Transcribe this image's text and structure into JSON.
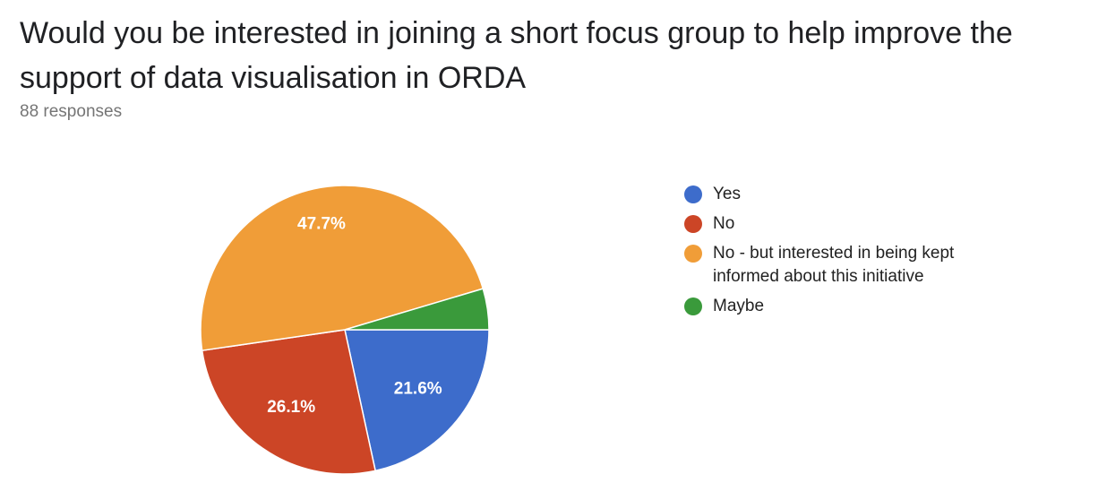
{
  "question": {
    "title": "Would you be interested in joining a short focus group to help improve the support of data visualisation in ORDA",
    "responses": "88 responses"
  },
  "chart_data": {
    "type": "pie",
    "total_responses": 88,
    "start_angle_deg": 90,
    "direction": "clockwise",
    "slices": [
      {
        "label": "Yes",
        "percent": 21.6,
        "display": "21.6%",
        "color": "#3d6ccb"
      },
      {
        "label": "No",
        "percent": 26.1,
        "display": "26.1%",
        "color": "#cc4526"
      },
      {
        "label": "No - but interested in being kept informed about this initiative",
        "percent": 47.7,
        "display": "47.7%",
        "color": "#f09d38"
      },
      {
        "label": "Maybe",
        "percent": 4.6,
        "display": "",
        "color": "#3a9a3b"
      }
    ],
    "legend_position": "right"
  }
}
